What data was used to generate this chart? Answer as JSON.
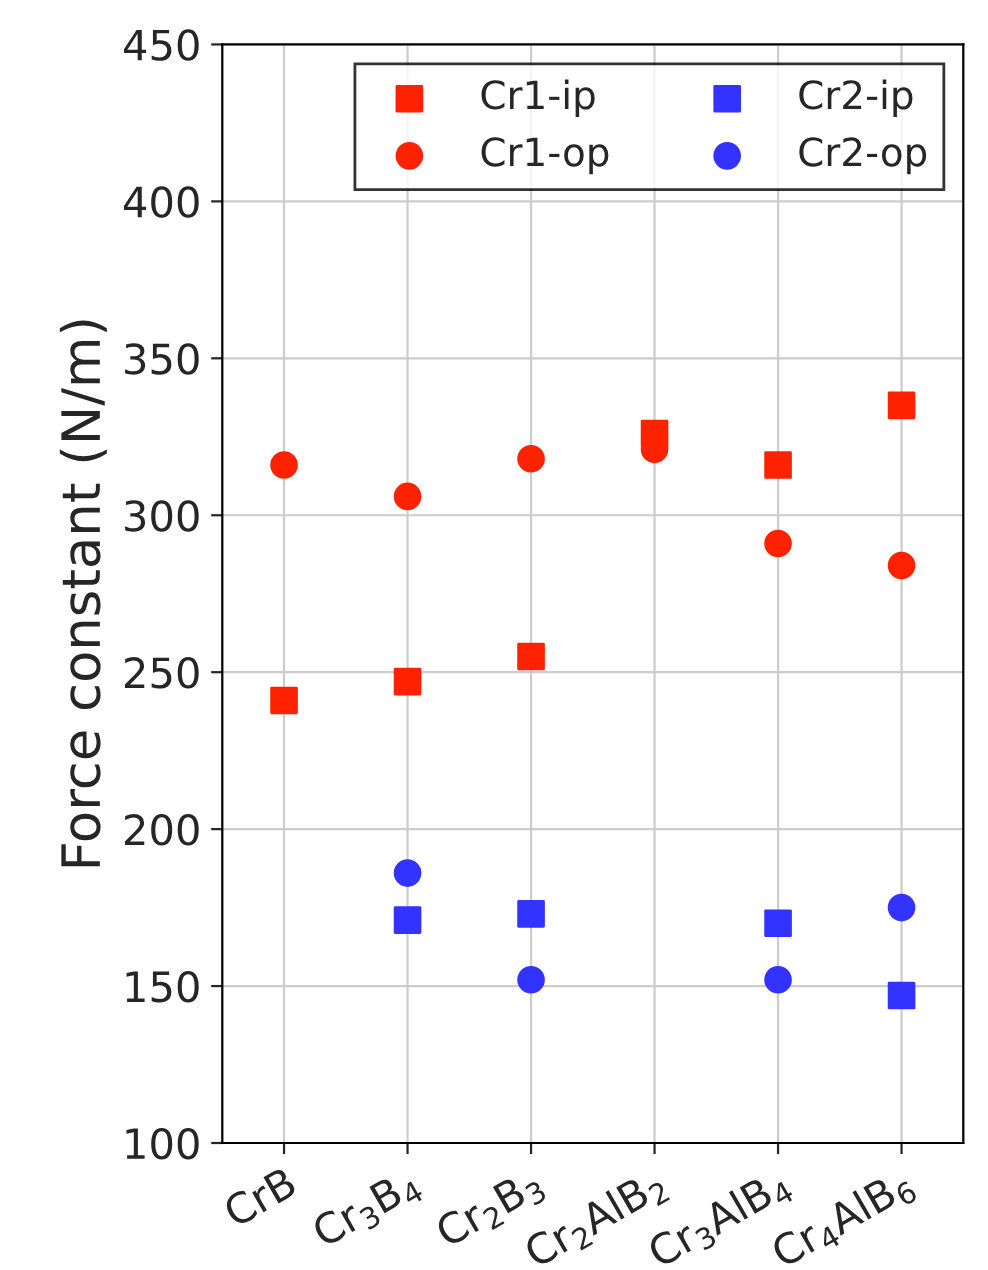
{
  "chart_data": {
    "type": "scatter",
    "ylabel": "Force constant (N/m)",
    "categories": [
      "CrB",
      "Cr$_{3}$B$_{4}$",
      "Cr$_{2}$B$_{3}$",
      "Cr$_{2}$AlB$_{2}$",
      "Cr$_{3}$AlB$_{4}$",
      "Cr$_{4}$AlB$_{6}$"
    ],
    "series": [
      {
        "name": "Cr1-ip",
        "color": "#ff2200",
        "marker": "square",
        "values": [
          241,
          247,
          255,
          326,
          316,
          335
        ]
      },
      {
        "name": "Cr1-op",
        "color": "#ff2200",
        "marker": "circle",
        "values": [
          316,
          306,
          318,
          321,
          291,
          284
        ]
      },
      {
        "name": "Cr2-ip",
        "color": "#3333ff",
        "marker": "square",
        "values": [
          null,
          171,
          173,
          null,
          170,
          147
        ]
      },
      {
        "name": "Cr2-op",
        "color": "#3333ff",
        "marker": "circle",
        "values": [
          null,
          186,
          152,
          null,
          152,
          175
        ]
      }
    ],
    "ylim": [
      100,
      450
    ],
    "yticks": [
      100,
      150,
      200,
      250,
      300,
      350,
      400,
      450
    ],
    "grid": true,
    "legend": "top right"
  }
}
